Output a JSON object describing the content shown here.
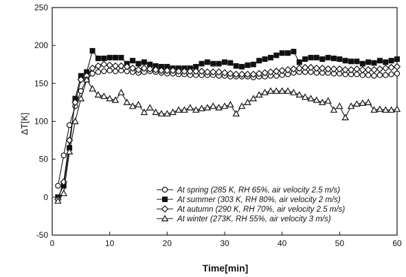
{
  "chart_data": {
    "type": "line",
    "xlabel": "Time[min]",
    "ylabel": "ΔT[K]",
    "xlim": [
      0,
      60
    ],
    "ylim": [
      -50,
      250
    ],
    "x_ticks": [
      0,
      10,
      20,
      30,
      40,
      50,
      60
    ],
    "y_ticks": [
      -50,
      0,
      50,
      100,
      150,
      200,
      250
    ],
    "grid": false,
    "legend_position": "lower-right",
    "series": [
      {
        "name": "At spring (285 K, RH 65%, air velocity 2.5 m/s)",
        "marker": "circle-open",
        "x": [
          1,
          2,
          3,
          4,
          5,
          6,
          7,
          8,
          9,
          10,
          11,
          12,
          13,
          14,
          15,
          16,
          17,
          18,
          19,
          20,
          21,
          22,
          23,
          24,
          25,
          26,
          27,
          28,
          29,
          30,
          31,
          32,
          33,
          34,
          35,
          36,
          37,
          38,
          39,
          40,
          41,
          42,
          43,
          44,
          45,
          46,
          47,
          48,
          49,
          50,
          51,
          52,
          53,
          54,
          55,
          56,
          57,
          58,
          59,
          60
        ],
        "values": [
          15,
          55,
          95,
          120,
          140,
          155,
          163,
          165,
          166,
          167,
          166,
          167,
          166,
          165,
          164,
          165,
          166,
          165,
          164,
          163,
          163,
          162,
          162,
          161,
          161,
          161,
          161,
          161,
          160,
          160,
          159,
          159,
          159,
          159,
          158,
          159,
          159,
          160,
          160,
          161,
          162,
          164,
          165,
          165,
          165,
          164,
          164,
          164,
          163,
          163,
          162,
          162,
          162,
          161,
          161,
          160,
          161,
          161,
          162,
          163
        ]
      },
      {
        "name": "At summer (303 K, RH 80%, air velocity 2 m/s)",
        "marker": "square-filled",
        "x": [
          1,
          2,
          3,
          4,
          5,
          6,
          7,
          8,
          9,
          10,
          11,
          12,
          13,
          14,
          15,
          16,
          17,
          18,
          19,
          20,
          21,
          22,
          23,
          24,
          25,
          26,
          27,
          28,
          29,
          30,
          31,
          32,
          33,
          34,
          35,
          36,
          37,
          38,
          39,
          40,
          41,
          42,
          43,
          44,
          45,
          46,
          47,
          48,
          49,
          50,
          51,
          52,
          53,
          54,
          55,
          56,
          57,
          58,
          59,
          60
        ],
        "values": [
          0,
          15,
          65,
          130,
          160,
          165,
          193,
          183,
          183,
          184,
          184,
          184,
          176,
          180,
          176,
          178,
          175,
          173,
          172,
          172,
          170,
          170,
          170,
          170,
          172,
          176,
          178,
          176,
          176,
          178,
          177,
          173,
          172,
          174,
          175,
          180,
          182,
          184,
          187,
          190,
          190,
          192,
          178,
          182,
          184,
          184,
          182,
          184,
          183,
          182,
          180,
          179,
          179,
          176,
          178,
          177,
          180,
          178,
          180,
          182
        ]
      },
      {
        "name": "At autumn (290 K, RH 70%, air velocity 2.5 m/s)",
        "marker": "diamond-open",
        "x": [
          1,
          2,
          3,
          4,
          5,
          6,
          7,
          8,
          9,
          10,
          11,
          12,
          13,
          14,
          15,
          16,
          17,
          18,
          19,
          20,
          21,
          22,
          23,
          24,
          25,
          26,
          27,
          28,
          29,
          30,
          31,
          32,
          33,
          34,
          35,
          36,
          37,
          38,
          39,
          40,
          41,
          42,
          43,
          44,
          45,
          46,
          47,
          48,
          49,
          50,
          51,
          52,
          53,
          54,
          55,
          56,
          57,
          58,
          59,
          60
        ],
        "values": [
          -3,
          20,
          75,
          125,
          155,
          160,
          170,
          173,
          175,
          174,
          173,
          173,
          172,
          170,
          168,
          170,
          169,
          168,
          167,
          167,
          167,
          166,
          166,
          166,
          166,
          166,
          165,
          165,
          165,
          164,
          163,
          162,
          162,
          162,
          162,
          163,
          164,
          165,
          166,
          167,
          168,
          169,
          170,
          171,
          171,
          170,
          170,
          169,
          169,
          169,
          168,
          168,
          169,
          168,
          168,
          168,
          169,
          170,
          171,
          172
        ]
      },
      {
        "name": "At winter (273K, RH 55%, air velocity 3 m/s)",
        "marker": "triangle-open",
        "x": [
          1,
          2,
          3,
          4,
          5,
          6,
          7,
          8,
          9,
          10,
          11,
          12,
          13,
          14,
          15,
          16,
          17,
          18,
          19,
          20,
          21,
          22,
          23,
          24,
          25,
          26,
          27,
          28,
          29,
          30,
          31,
          32,
          33,
          34,
          35,
          36,
          37,
          38,
          39,
          40,
          41,
          42,
          43,
          44,
          45,
          46,
          47,
          48,
          49,
          50,
          51,
          52,
          53,
          54,
          55,
          56,
          57,
          58,
          59,
          60
        ],
        "values": [
          -5,
          5,
          60,
          100,
          130,
          155,
          143,
          135,
          133,
          130,
          128,
          138,
          125,
          120,
          122,
          112,
          118,
          112,
          110,
          110,
          112,
          115,
          115,
          118,
          115,
          117,
          118,
          120,
          118,
          120,
          122,
          110,
          120,
          125,
          130,
          135,
          138,
          140,
          140,
          140,
          140,
          138,
          135,
          132,
          130,
          128,
          125,
          127,
          115,
          120,
          105,
          120,
          123,
          124,
          125,
          115,
          116,
          115,
          115,
          116
        ]
      }
    ]
  }
}
